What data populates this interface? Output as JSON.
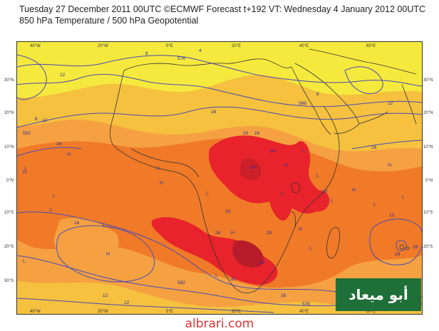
{
  "title": {
    "line1": "Tuesday 27 December 2011 00UTC ©ECMWF Forecast t+192 VT: Wednesday 4 January 2012 00UTC",
    "line2": "850 hPa Temperature / 500 hPa Geopotential"
  },
  "map": {
    "lon_labels": [
      "40°W",
      "20°W",
      "0°E",
      "20°E",
      "40°E",
      "60°E"
    ],
    "lat_labels": [
      "30°N",
      "20°N",
      "10°N",
      "0°N",
      "10°S",
      "20°S",
      "30°S"
    ],
    "colors": {
      "yellow": "#f5e93d",
      "light_orange": "#f5c13e",
      "orange": "#f5a142",
      "dark_orange": "#f07a28",
      "red": "#e8232b",
      "dark_red": "#b81c2a",
      "contour": "#4b4bb3",
      "land_outline": "#333333"
    },
    "contour_labels": [
      "8",
      "4",
      "576",
      "12",
      "8",
      "12",
      "16",
      "20",
      "16",
      "24",
      "24",
      "20",
      "16",
      "12",
      "576",
      "16",
      "20",
      "24",
      "20",
      "552",
      "588",
      "582",
      "8",
      "12",
      "16",
      "12",
      "24",
      "28",
      "28",
      "20",
      "16",
      "12"
    ],
    "pressure_labels": [
      "L",
      "L",
      "L",
      "L",
      "H",
      "H",
      "H",
      "L",
      "H",
      "L",
      "H",
      "L",
      "L",
      "H",
      "L",
      "L",
      "H",
      "L",
      "H",
      "L",
      "L",
      "L",
      "L",
      "H",
      "H"
    ]
  },
  "watermark": {
    "text": "أبو ميعاد"
  },
  "site": {
    "text": "albrari.com"
  }
}
